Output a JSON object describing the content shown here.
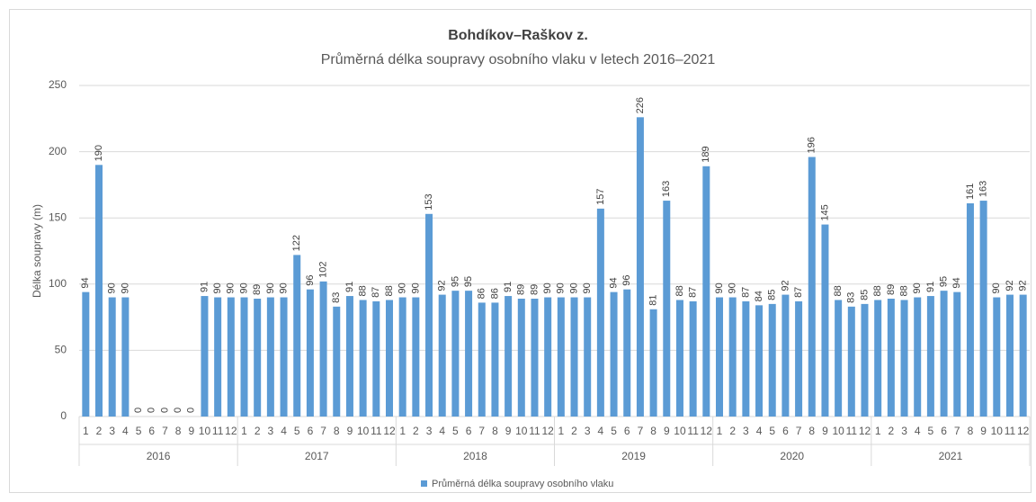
{
  "chart_data": {
    "type": "bar",
    "title": "Bohdíkov–Raškov z.",
    "subtitle": "Průměrná délka soupravy osobního vlaku v letech 2016–2021",
    "y_label": "Délka soupravy (m)",
    "categories": [
      "1",
      "2",
      "3",
      "4",
      "5",
      "6",
      "7",
      "8",
      "9",
      "10",
      "11",
      "12",
      "1",
      "2",
      "3",
      "4",
      "5",
      "6",
      "7",
      "8",
      "9",
      "10",
      "11",
      "12",
      "1",
      "2",
      "3",
      "4",
      "5",
      "6",
      "7",
      "8",
      "9",
      "10",
      "11",
      "12",
      "1",
      "2",
      "3",
      "4",
      "5",
      "6",
      "7",
      "8",
      "9",
      "10",
      "11",
      "12",
      "1",
      "2",
      "3",
      "4",
      "5",
      "6",
      "7",
      "8",
      "9",
      "10",
      "11",
      "12",
      "1",
      "2",
      "3",
      "4",
      "5",
      "6",
      "7",
      "8",
      "9",
      "10",
      "11",
      "12"
    ],
    "years": [
      "2016",
      "2017",
      "2018",
      "2019",
      "2020",
      "2021"
    ],
    "series": [
      {
        "name": "Průměrná délka soupravy osobního vlaku",
        "color": "#5b9bd5",
        "values": [
          94,
          190,
          90,
          90,
          0,
          0,
          0,
          0,
          0,
          91,
          90,
          90,
          90,
          89,
          90,
          90,
          122,
          96,
          102,
          83,
          91,
          88,
          87,
          88,
          90,
          90,
          153,
          92,
          95,
          95,
          86,
          86,
          91,
          89,
          89,
          90,
          90,
          90,
          90,
          157,
          94,
          96,
          226,
          81,
          163,
          88,
          87,
          189,
          90,
          90,
          87,
          84,
          85,
          92,
          87,
          196,
          145,
          88,
          83,
          85,
          88,
          89,
          88,
          90,
          91,
          95,
          94,
          161,
          163,
          90,
          92,
          92
        ]
      }
    ],
    "ylim": [
      0,
      250
    ],
    "yticks": [
      0,
      50,
      100,
      150,
      200,
      250
    ],
    "grid": true,
    "legend": "bottom"
  }
}
